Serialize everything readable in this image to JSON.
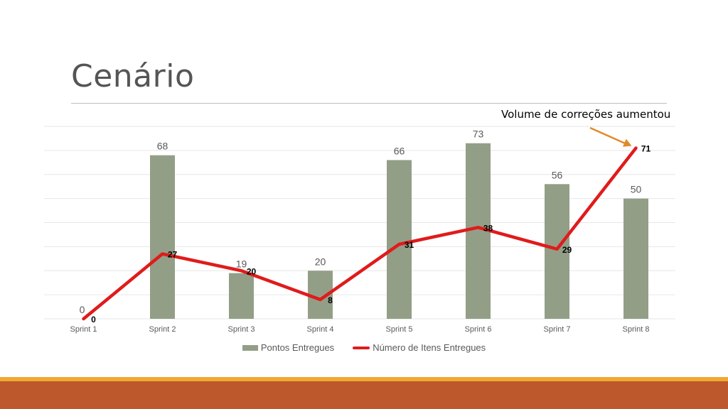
{
  "slide": {
    "title": "Cenário",
    "annotation": "Volume de correções aumentou"
  },
  "colors": {
    "bar": "#939e87",
    "line": "#e01b1b",
    "arrow": "#e08a2a",
    "footer_thin": "#f0a830",
    "footer_band": "#bd572c",
    "grid": "#e6e6e6"
  },
  "chart_data": {
    "type": "bar",
    "categories": [
      "Sprint 1",
      "Sprint 2",
      "Sprint 3",
      "Sprint 4",
      "Sprint 5",
      "Sprint 6",
      "Sprint 7",
      "Sprint 8"
    ],
    "series": [
      {
        "name": "Pontos Entregues",
        "type": "bar",
        "values": [
          0,
          68,
          19,
          20,
          66,
          73,
          56,
          50
        ]
      },
      {
        "name": "Número de Itens Entregues",
        "type": "line",
        "values": [
          0,
          27,
          20,
          8,
          31,
          38,
          29,
          71
        ]
      }
    ],
    "ylim": [
      0,
      80
    ],
    "grid": true,
    "legend_position": "bottom"
  }
}
